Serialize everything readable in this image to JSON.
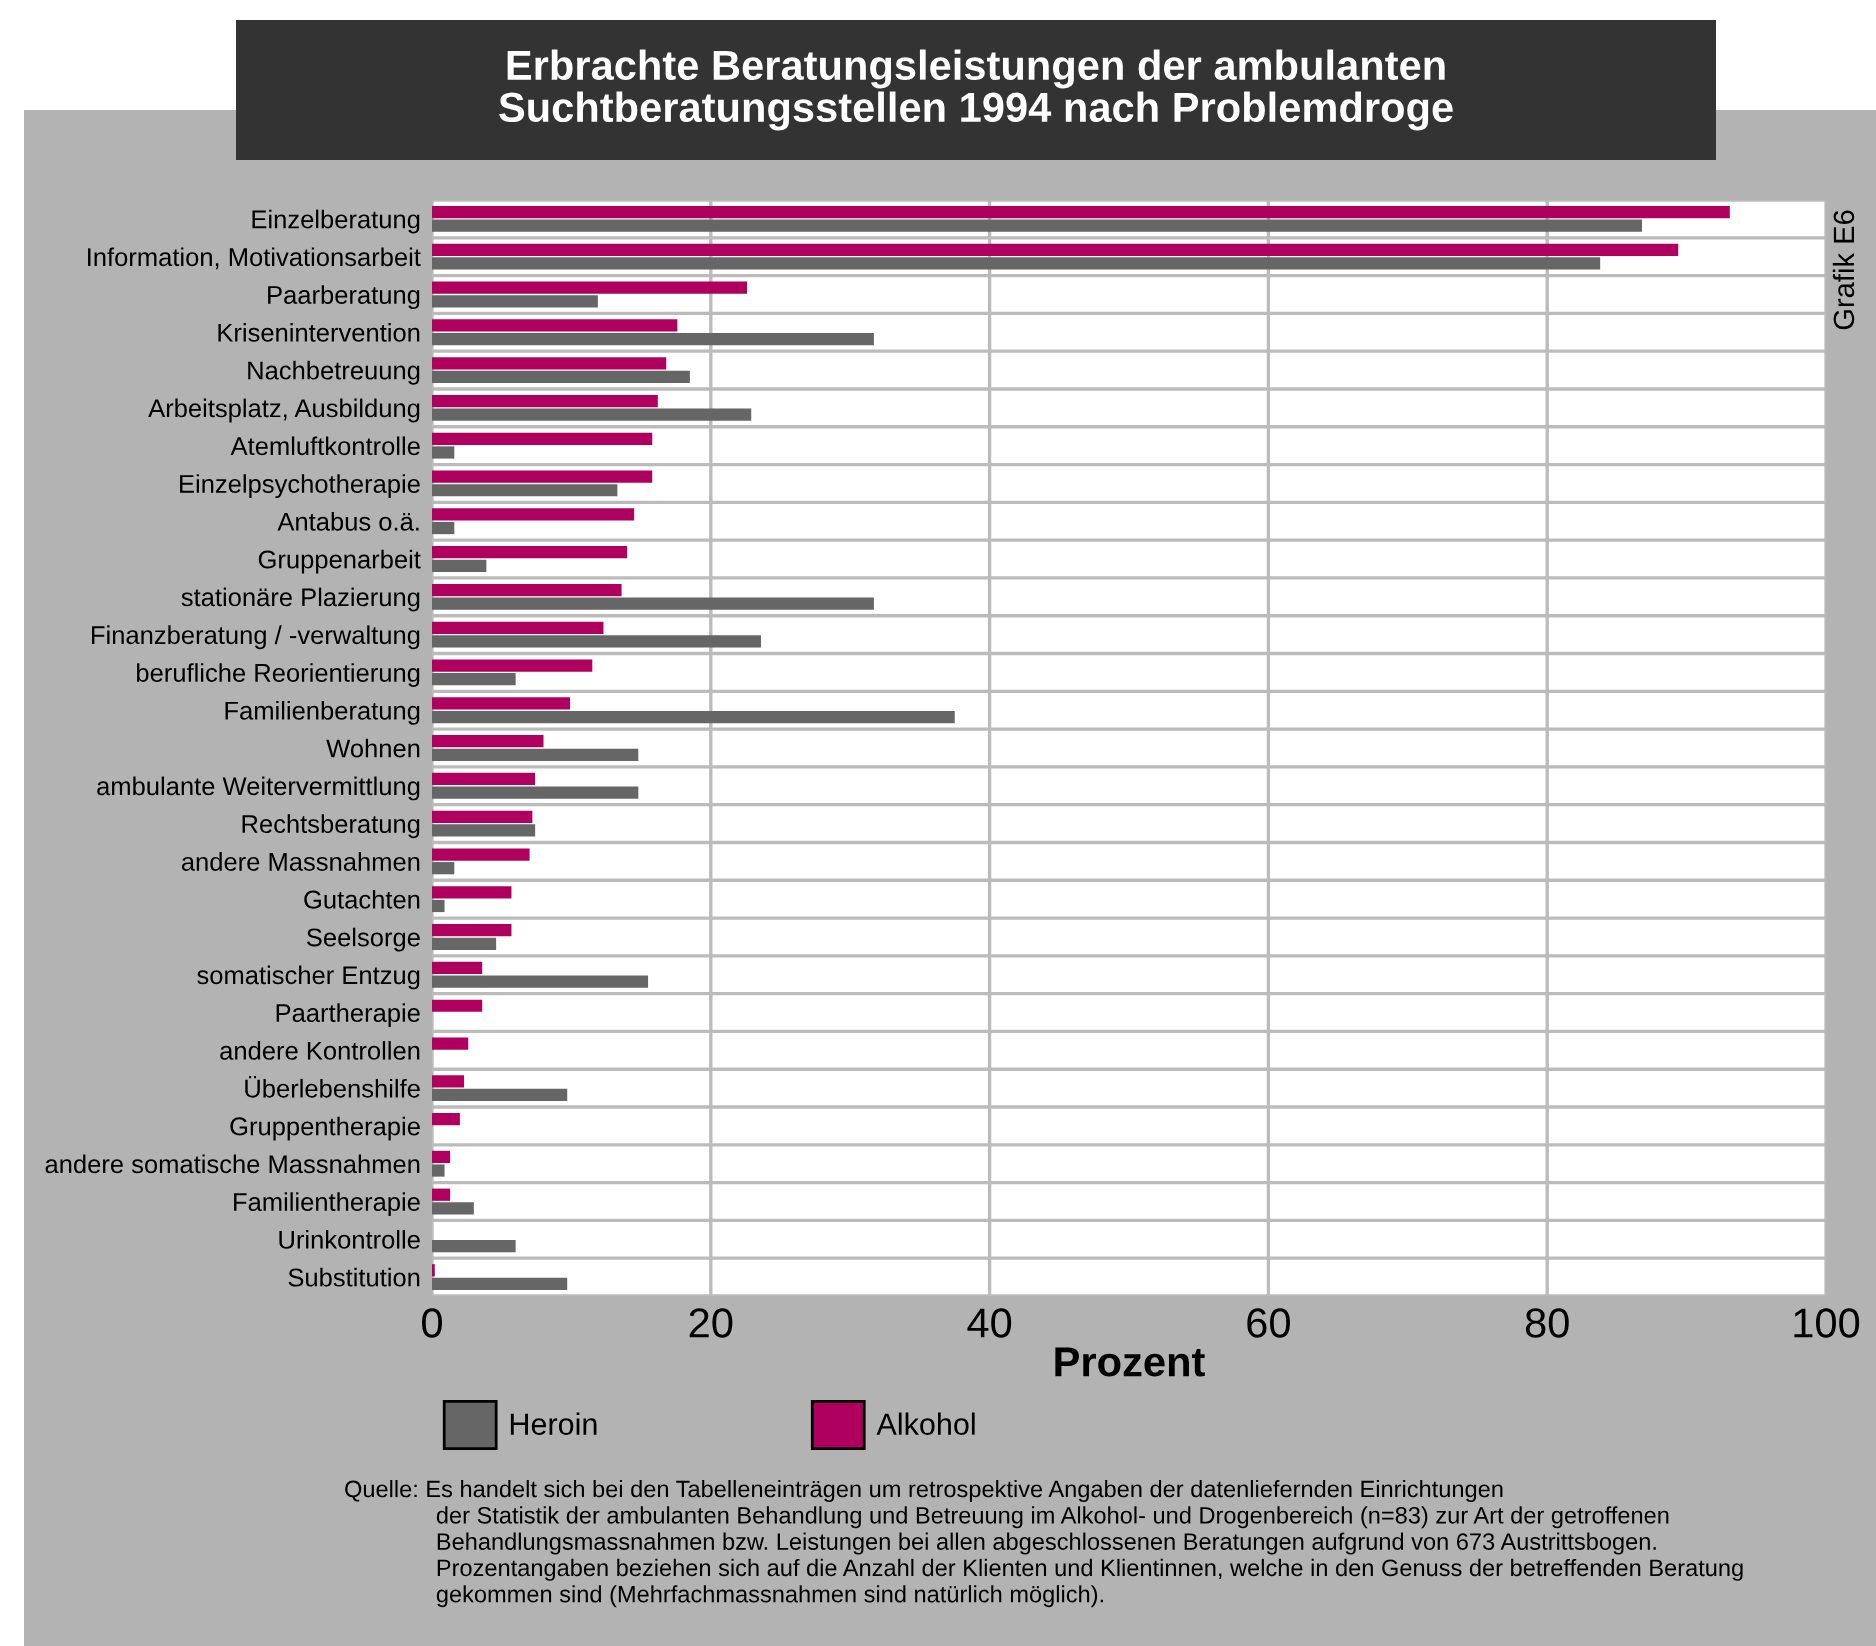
{
  "chart_data": {
    "type": "bar",
    "orientation": "horizontal",
    "title": "Erbrachte Beratungsleistungen der ambulanten\nSuchtberatungsstellen 1994 nach Problemdroge",
    "xlabel": "Prozent",
    "categories": [
      "Einzelberatung",
      "Information, Motivationsarbeit",
      "Paarberatung",
      "Krisenintervention",
      "Nachbetreuung",
      "Arbeitsplatz, Ausbildung",
      "Atemluftkontrolle",
      "Einzelpsychotherapie",
      "Antabus o.ä.",
      "Gruppenarbeit",
      "stationäre Plazierung",
      "Finanzberatung / -verwaltung",
      "berufliche Reorientierung",
      "Familienberatung",
      "Wohnen",
      "ambulante Weitervermittlung",
      "Rechtsberatung",
      "andere Massnahmen",
      "Gutachten",
      "Seelsorge",
      "somatischer Entzug",
      "Paartherapie",
      "andere Kontrollen",
      "Überlebenshilfe",
      "Gruppentherapie",
      "andere somatische Massnahmen",
      "Familientherapie",
      "Urinkontrolle",
      "Substitution"
    ],
    "series": [
      {
        "name": "Heroin",
        "color": "#666666",
        "values": [
          86.8,
          83.8,
          11.9,
          31.7,
          18.5,
          22.9,
          1.6,
          13.3,
          1.6,
          3.9,
          31.7,
          23.6,
          6.0,
          37.5,
          14.8,
          14.8,
          7.4,
          1.6,
          0.9,
          4.6,
          15.5,
          0,
          0,
          9.7,
          0,
          0.9,
          3.0,
          6.0,
          9.7
        ]
      },
      {
        "name": "Alkohol",
        "color": "#b0005f",
        "values": [
          93.1,
          89.4,
          22.6,
          17.6,
          16.8,
          16.2,
          15.8,
          15.8,
          14.5,
          14.0,
          13.6,
          12.3,
          11.5,
          9.9,
          8.0,
          7.4,
          7.2,
          7.0,
          5.7,
          5.7,
          3.6,
          3.6,
          2.6,
          2.3,
          2.0,
          1.3,
          1.3,
          0,
          0.2
        ]
      }
    ],
    "xlim": [
      0,
      100
    ],
    "xticks": [
      0,
      20,
      40,
      60,
      80,
      100
    ],
    "grid": "x",
    "legend": "bottom",
    "annotations": [
      "Grafik E6",
      "Quelle: Es handelt sich bei den Tabelleneinträgen um retrospektive Angaben der datenliefernden Einrichtungen\n              der Statistik der ambulanten Behandlung und Betreuung im Alkohol- und Drogenbereich (n=83) zur Art der getroffenen\n              Behandlungsmassnahmen bzw. Leistungen bei allen abgeschlossenen Beratungen aufgrund von 673 Austrittsbogen.\n              Prozentangaben beziehen sich auf die Anzahl der Klienten und Klientinnen, welche in den Genuss der betreffenden Beratung\n              gekommen sind (Mehrfachmassnahmen sind natürlich möglich)."
    ]
  }
}
